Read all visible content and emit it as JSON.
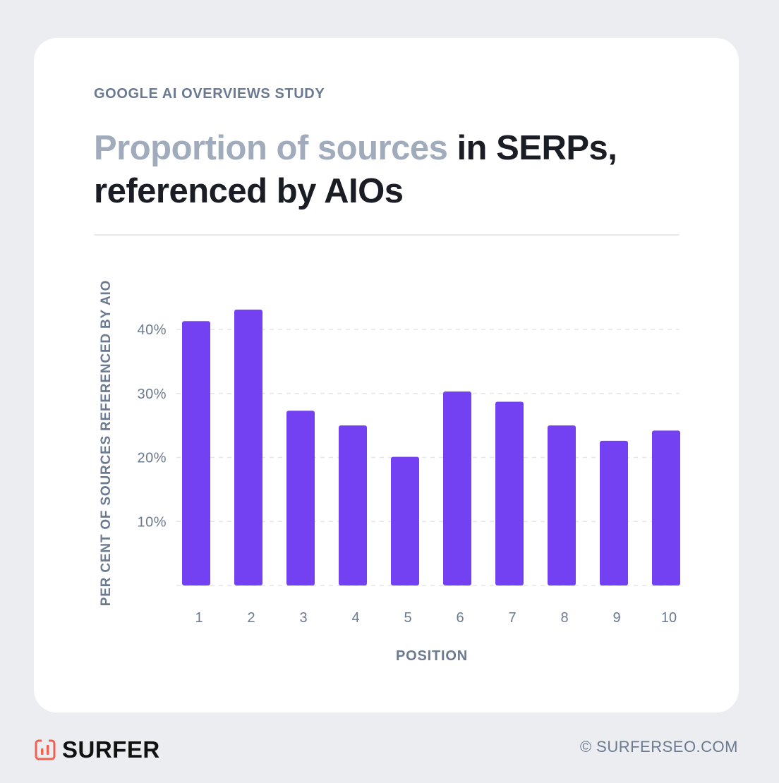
{
  "header": {
    "eyebrow": "GOOGLE AI OVERVIEWS STUDY",
    "title_muted": "Proportion of sources",
    "title_rest": " in SERPs,",
    "title_line2": "referenced by AIOs"
  },
  "footer": {
    "brand": "SURFER",
    "logo_icon": "surfer-logo-icon",
    "copyright": "© SURFERSEO.COM"
  },
  "colors": {
    "bar": "#7340f2",
    "background": "#ebedf0",
    "logo": "#f0614f"
  },
  "chart_data": {
    "type": "bar",
    "xlabel": "POSITION",
    "ylabel": "PER CENT OF SOURCES REFERENCED BY AIO",
    "categories": [
      "1",
      "2",
      "3",
      "4",
      "5",
      "6",
      "7",
      "8",
      "9",
      "10"
    ],
    "values": [
      41.3,
      43.1,
      27.3,
      25.0,
      20.1,
      30.3,
      28.7,
      25.0,
      22.6,
      24.2
    ],
    "yticks": [
      {
        "v": 10,
        "label": "10%"
      },
      {
        "v": 20,
        "label": "20%"
      },
      {
        "v": 30,
        "label": "30%"
      },
      {
        "v": 40,
        "label": "40%"
      }
    ],
    "ylim": [
      0,
      45
    ],
    "grid": true,
    "unit": "%"
  }
}
